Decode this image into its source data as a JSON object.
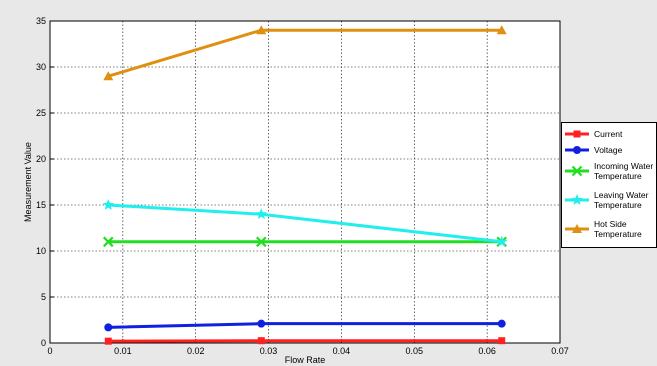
{
  "chart_data": {
    "type": "line",
    "title": "",
    "xlabel": "Flow Rate",
    "ylabel": "Measurement Value",
    "xlim": [
      0,
      0.07
    ],
    "ylim": [
      0,
      35
    ],
    "xticks": [
      "0",
      "0.01",
      "0.02",
      "0.03",
      "0.04",
      "0.05",
      "0.06",
      "0.07"
    ],
    "yticks": [
      "0",
      "5",
      "10",
      "15",
      "20",
      "25",
      "30",
      "35"
    ],
    "grid": true,
    "legend_position": "right",
    "x": [
      0.008,
      0.029,
      0.062
    ],
    "series": [
      {
        "name": "Current",
        "values": [
          0.2,
          0.25,
          0.25
        ],
        "color": "#ff2020",
        "marker": "square"
      },
      {
        "name": "Voltage",
        "values": [
          1.7,
          2.1,
          2.1
        ],
        "color": "#1020e0",
        "marker": "circle"
      },
      {
        "name": "Incoming Water Temperature",
        "values": [
          11,
          11,
          11
        ],
        "color": "#22dd22",
        "marker": "x"
      },
      {
        "name": "Leaving Water Temperature",
        "values": [
          15,
          14,
          11
        ],
        "color": "#22eeee",
        "marker": "star"
      },
      {
        "name": "Hot Side Temperature",
        "values": [
          29,
          34,
          34
        ],
        "color": "#e09010",
        "marker": "triangle"
      }
    ]
  }
}
